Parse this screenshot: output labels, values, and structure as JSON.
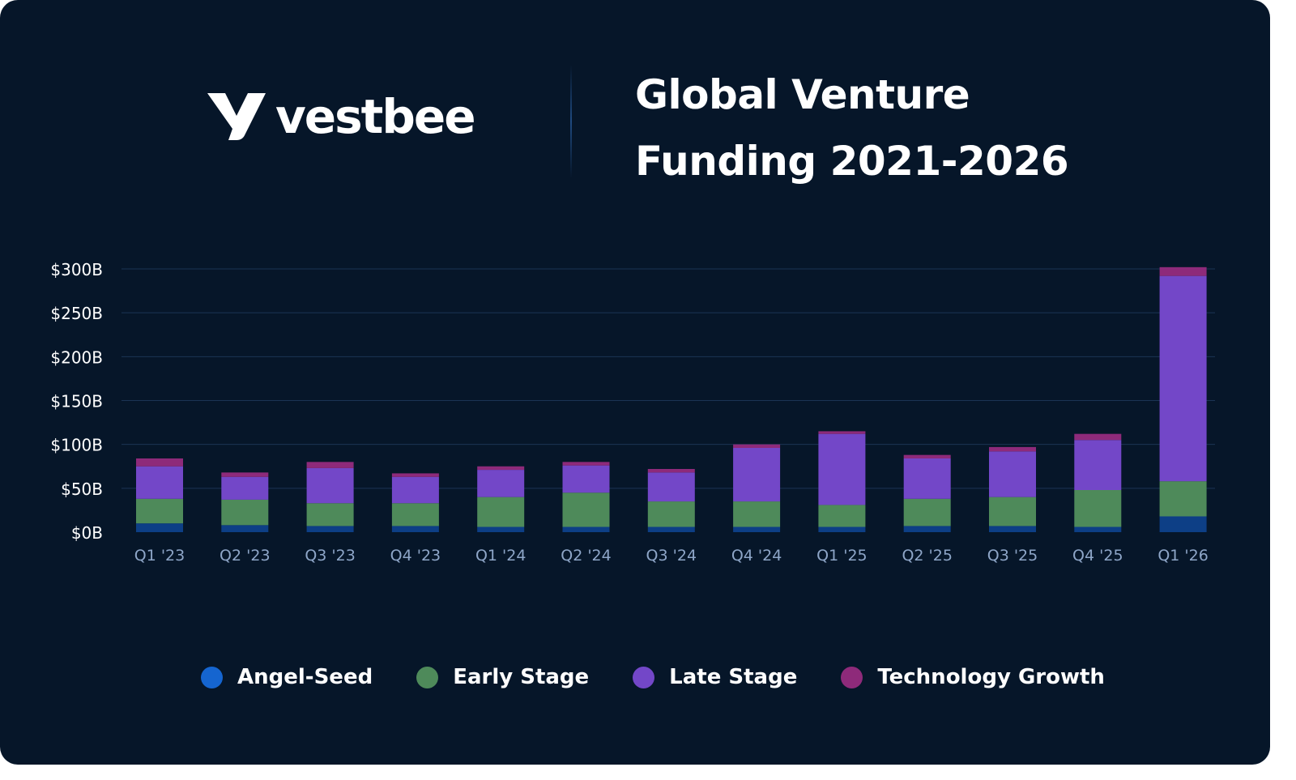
{
  "brand": {
    "name": "vestbee",
    "logo_color": "#ffffff"
  },
  "title_lines": [
    "Global Venture",
    "Funding 2021-2026"
  ],
  "colors": {
    "background": "#061629",
    "grid": "#1b3454",
    "tick_label": "#ffffff",
    "category_label": "#8ea6c8"
  },
  "chart_data": {
    "type": "bar",
    "stacked": true,
    "title": "Global Venture Funding 2021-2026",
    "xlabel": "",
    "ylabel": "",
    "ylim": [
      0,
      300
    ],
    "yticks": [
      0,
      50,
      100,
      150,
      200,
      250,
      300
    ],
    "ytick_labels": [
      "$0B",
      "$50B",
      "$100B",
      "$150B",
      "$200B",
      "$250B",
      "$300B"
    ],
    "grid": true,
    "legend_position": "bottom",
    "categories": [
      "Q1 '23",
      "Q2 '23",
      "Q3 '23",
      "Q4 '23",
      "Q1 '24",
      "Q2 '24",
      "Q3 '24",
      "Q4 '24",
      "Q1 '25",
      "Q2 '25",
      "Q3 '25",
      "Q4 '25",
      "Q1 '26"
    ],
    "series": [
      {
        "name": "Angel-Seed",
        "color": "#1565d0",
        "bar_color": "#0d3f86",
        "values": [
          10,
          8,
          7,
          7,
          6,
          6,
          6,
          6,
          6,
          7,
          7,
          6,
          18
        ]
      },
      {
        "name": "Early Stage",
        "color": "#4e8a5a",
        "bar_color": "#4e8a5a",
        "values": [
          28,
          29,
          26,
          26,
          34,
          39,
          29,
          29,
          25,
          31,
          33,
          42,
          40
        ]
      },
      {
        "name": "Late Stage",
        "color": "#7347c8",
        "bar_color": "#7347c8",
        "values": [
          37,
          26,
          40,
          30,
          31,
          31,
          33,
          61,
          81,
          46,
          52,
          57,
          234
        ]
      },
      {
        "name": "Technology Growth",
        "color": "#8e2a7a",
        "bar_color": "#8e2a7a",
        "values": [
          9,
          5,
          7,
          4,
          4,
          4,
          4,
          4,
          3,
          4,
          5,
          7,
          10
        ]
      }
    ]
  }
}
